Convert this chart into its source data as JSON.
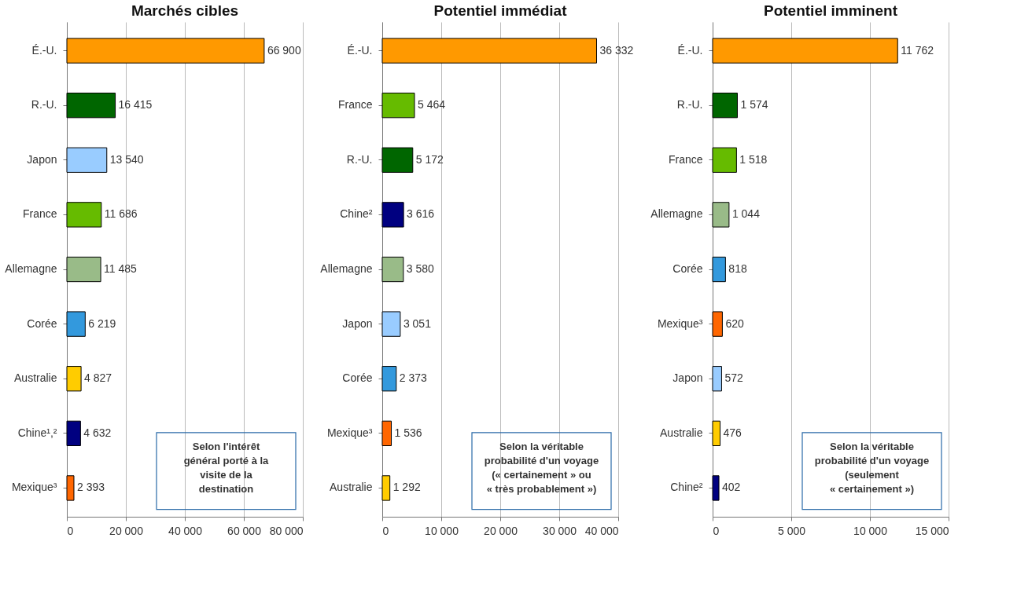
{
  "chart_data": [
    {
      "type": "bar",
      "orientation": "horizontal",
      "title": "Marchés cibles",
      "categories": [
        "É.-U.",
        "R.-U.",
        "Japon",
        "France",
        "Allemagne",
        "Corée",
        "Australie",
        "Chine¹,²",
        "Mexique³"
      ],
      "values": [
        66900,
        16415,
        13540,
        11686,
        11485,
        6219,
        4827,
        4632,
        2393
      ],
      "value_labels": [
        "66 900",
        "16 415",
        "13 540",
        "11 686",
        "11 485",
        "6 219",
        "4 827",
        "4 632",
        "2 393"
      ],
      "colors": [
        "#ff9900",
        "#006600",
        "#99ccff",
        "#66bb00",
        "#99bb88",
        "#3399dd",
        "#ffcc00",
        "#000080",
        "#ff6600"
      ],
      "xlim": [
        0,
        80000
      ],
      "xticks": [
        0,
        {
          "value": 20000,
          "label": "20 000"
        },
        {
          "value": 40000,
          "label": "40 000"
        },
        {
          "value": 60000,
          "label": "60 000"
        },
        {
          "value": 80000,
          "label": "80 000"
        }
      ],
      "grid": "x",
      "annotations": [
        "Selon l'intérêt\ngénéral porté à la\nvisite de la\ndestination"
      ]
    },
    {
      "type": "bar",
      "orientation": "horizontal",
      "title": "Potentiel immédiat",
      "categories": [
        "É.-U.",
        "France",
        "R.-U.",
        "Chine²",
        "Allemagne",
        "Japon",
        "Corée",
        "Mexique³",
        "Australie"
      ],
      "values": [
        36332,
        5464,
        5172,
        3616,
        3580,
        3051,
        2373,
        1536,
        1292
      ],
      "value_labels": [
        "36 332",
        "5 464",
        "5 172",
        "3 616",
        "3 580",
        "3 051",
        "2 373",
        "1 536",
        "1 292"
      ],
      "colors": [
        "#ff9900",
        "#66bb00",
        "#006600",
        "#000080",
        "#99bb88",
        "#99ccff",
        "#3399dd",
        "#ff6600",
        "#ffcc00"
      ],
      "xlim": [
        0,
        40000
      ],
      "xticks": [
        0,
        {
          "value": 10000,
          "label": "10 000"
        },
        {
          "value": 20000,
          "label": "20 000"
        },
        {
          "value": 30000,
          "label": "30 000"
        },
        {
          "value": 40000,
          "label": "40 000"
        }
      ],
      "grid": "x",
      "annotations": [
        "Selon la véritable\nprobabilité d'un voyage\n(« certainement » ou\n« très probablement »)"
      ]
    },
    {
      "type": "bar",
      "orientation": "horizontal",
      "title": "Potentiel imminent",
      "categories": [
        "É.-U.",
        "R.-U.",
        "France",
        "Allemagne",
        "Corée",
        "Mexique³",
        "Japon",
        "Australie",
        "Chine²"
      ],
      "values": [
        11762,
        1574,
        1518,
        1044,
        818,
        620,
        572,
        476,
        402
      ],
      "value_labels": [
        "11 762",
        "1 574",
        "1 518",
        "1 044",
        "818",
        "620",
        "572",
        "476",
        "402"
      ],
      "colors": [
        "#ff9900",
        "#006600",
        "#66bb00",
        "#99bb88",
        "#3399dd",
        "#ff6600",
        "#99ccff",
        "#ffcc00",
        "#000080"
      ],
      "xlim": [
        0,
        15000
      ],
      "xticks": [
        0,
        {
          "value": 5000,
          "label": "5 000"
        },
        {
          "value": 10000,
          "label": "10 000"
        },
        {
          "value": 15000,
          "label": "15 000"
        }
      ],
      "grid": "x",
      "annotations": [
        "Selon la véritable\nprobabilité d'un voyage\n(seulement\n« certainement »)"
      ]
    }
  ]
}
